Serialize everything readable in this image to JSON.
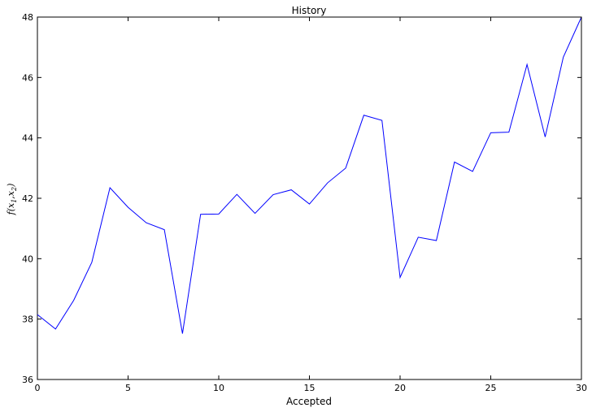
{
  "chart_data": {
    "type": "line",
    "title": "History",
    "xlabel": "Accepted",
    "ylabel": "f(x1,x2)",
    "xlim": [
      0,
      30
    ],
    "ylim": [
      36,
      48
    ],
    "xticks": [
      0,
      5,
      10,
      15,
      20,
      25,
      30
    ],
    "yticks": [
      36,
      38,
      40,
      42,
      44,
      46,
      48
    ],
    "grid": false,
    "line_color": "#0000ff",
    "series": [
      {
        "x": [
          0,
          1,
          2,
          3,
          4,
          5,
          6,
          7,
          8,
          9,
          10,
          11,
          12,
          13,
          14,
          15,
          16,
          17,
          18,
          19,
          20,
          21,
          22,
          23,
          24,
          25,
          26,
          27,
          28,
          29,
          30
        ],
        "values": [
          38.15,
          37.67,
          38.62,
          39.88,
          42.35,
          41.7,
          41.19,
          40.96,
          37.52,
          41.47,
          41.48,
          42.13,
          41.5,
          42.12,
          42.28,
          41.81,
          42.51,
          43.0,
          44.75,
          44.58,
          39.38,
          40.71,
          40.6,
          43.2,
          42.89,
          44.17,
          44.19,
          46.43,
          44.03,
          46.67,
          48.0
        ]
      }
    ]
  }
}
